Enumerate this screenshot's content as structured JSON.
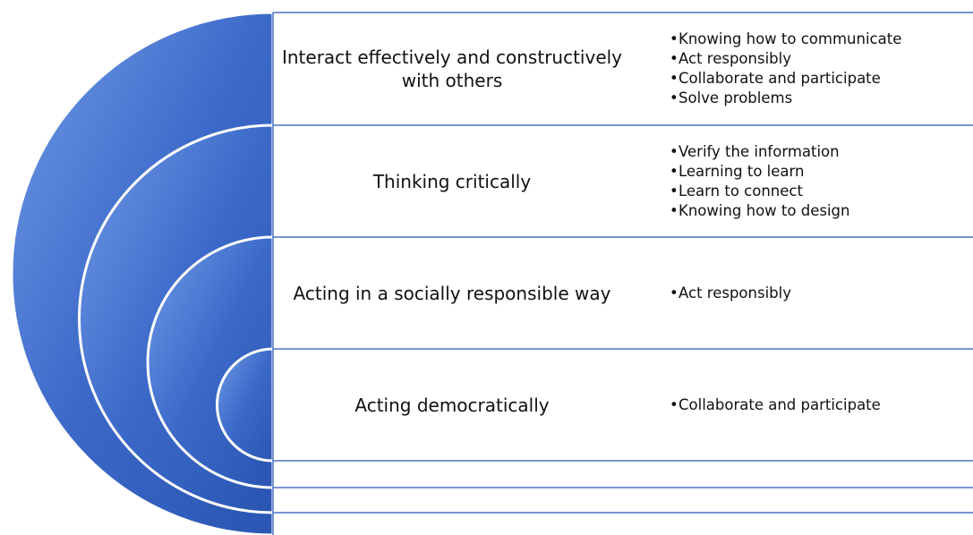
{
  "rows": [
    {
      "title": "Interact effectively and constructively with others",
      "bullets": [
        "Knowing how to communicate",
        "Act responsibly",
        "Collaborate and participate",
        "Solve problems"
      ]
    },
    {
      "title": "Thinking critically",
      "bullets": [
        "Verify the information",
        "Learning to learn",
        "Learn to connect",
        "Knowing how to design"
      ]
    },
    {
      "title": "Acting in a socially responsible way",
      "bullets": [
        "Act responsibly"
      ]
    },
    {
      "title": "Acting democratically",
      "bullets": [
        "Collaborate and participate"
      ]
    }
  ]
}
